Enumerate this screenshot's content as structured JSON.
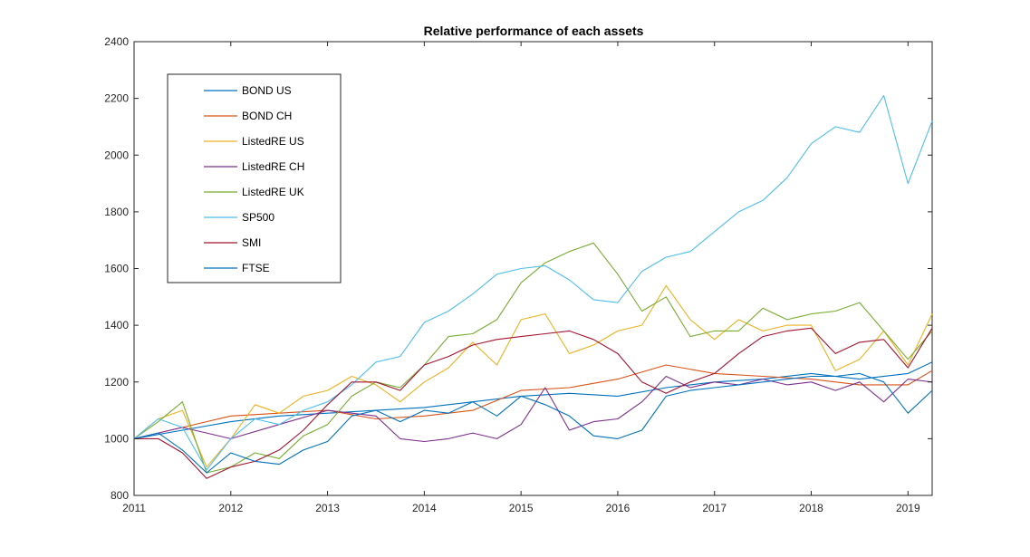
{
  "chart_data": {
    "type": "line",
    "title": "Relative performance of each assets",
    "xlabel": "",
    "ylabel": "",
    "xlim": [
      2011,
      2019.25
    ],
    "ylim": [
      800,
      2400
    ],
    "x_ticks": [
      2011,
      2012,
      2013,
      2014,
      2015,
      2016,
      2017,
      2018,
      2019
    ],
    "y_ticks": [
      800,
      1000,
      1200,
      1400,
      1600,
      1800,
      2000,
      2200,
      2400
    ],
    "legend_position": "top-left",
    "grid": false,
    "series": [
      {
        "name": "BOND US",
        "color": "#0072BD",
        "x": [
          2011,
          2011.5,
          2012,
          2012.5,
          2013,
          2013.5,
          2014,
          2014.5,
          2015,
          2015.5,
          2016,
          2016.5,
          2017,
          2017.5,
          2018,
          2018.5,
          2019,
          2019.25
        ],
        "y": [
          1000,
          1030,
          1060,
          1080,
          1090,
          1100,
          1110,
          1130,
          1150,
          1160,
          1150,
          1180,
          1200,
          1210,
          1230,
          1210,
          1230,
          1270
        ]
      },
      {
        "name": "BOND CH",
        "color": "#D95319",
        "x": [
          2011,
          2011.5,
          2012,
          2012.5,
          2013,
          2013.5,
          2014,
          2014.5,
          2015,
          2015.5,
          2016,
          2016.5,
          2017,
          2017.5,
          2018,
          2018.5,
          2019,
          2019.25
        ],
        "y": [
          1000,
          1040,
          1080,
          1090,
          1100,
          1070,
          1080,
          1100,
          1170,
          1180,
          1210,
          1260,
          1230,
          1220,
          1210,
          1190,
          1190,
          1240
        ]
      },
      {
        "name": "ListedRE US",
        "color": "#EDB120",
        "x": [
          2011,
          2011.25,
          2011.5,
          2011.75,
          2012,
          2012.25,
          2012.5,
          2012.75,
          2013,
          2013.25,
          2013.5,
          2013.75,
          2014,
          2014.25,
          2014.5,
          2014.75,
          2015,
          2015.25,
          2015.5,
          2015.75,
          2016,
          2016.25,
          2016.5,
          2016.75,
          2017,
          2017.25,
          2017.5,
          2017.75,
          2018,
          2018.25,
          2018.5,
          2018.75,
          2019,
          2019.25
        ],
        "y": [
          1000,
          1070,
          1100,
          900,
          1000,
          1120,
          1090,
          1150,
          1170,
          1220,
          1190,
          1130,
          1200,
          1250,
          1340,
          1260,
          1420,
          1440,
          1300,
          1330,
          1380,
          1400,
          1540,
          1420,
          1350,
          1420,
          1380,
          1400,
          1400,
          1240,
          1280,
          1380,
          1260,
          1440
        ]
      },
      {
        "name": "ListedRE CH",
        "color": "#7E2F8E",
        "x": [
          2011,
          2011.5,
          2012,
          2012.5,
          2013,
          2013.25,
          2013.5,
          2013.75,
          2014,
          2014.25,
          2014.5,
          2014.75,
          2015,
          2015.25,
          2015.5,
          2015.75,
          2016,
          2016.25,
          2016.5,
          2016.75,
          2017,
          2017.25,
          2017.5,
          2017.75,
          2018,
          2018.25,
          2018.5,
          2018.75,
          2019,
          2019.25
        ],
        "y": [
          1000,
          1040,
          1000,
          1050,
          1100,
          1090,
          1080,
          1000,
          990,
          1000,
          1020,
          1000,
          1050,
          1180,
          1030,
          1060,
          1070,
          1130,
          1220,
          1180,
          1200,
          1190,
          1210,
          1190,
          1200,
          1170,
          1200,
          1130,
          1210,
          1200
        ]
      },
      {
        "name": "ListedRE UK",
        "color": "#77AC30",
        "x": [
          2011,
          2011.25,
          2011.5,
          2011.75,
          2012,
          2012.25,
          2012.5,
          2012.75,
          2013,
          2013.25,
          2013.5,
          2013.75,
          2014,
          2014.25,
          2014.5,
          2014.75,
          2015,
          2015.25,
          2015.5,
          2015.75,
          2016,
          2016.25,
          2016.5,
          2016.75,
          2017,
          2017.25,
          2017.5,
          2017.75,
          2018,
          2018.25,
          2018.5,
          2018.75,
          2019,
          2019.25
        ],
        "y": [
          1000,
          1060,
          1130,
          880,
          900,
          950,
          930,
          1010,
          1050,
          1150,
          1200,
          1180,
          1260,
          1360,
          1370,
          1420,
          1550,
          1620,
          1660,
          1690,
          1580,
          1450,
          1500,
          1360,
          1380,
          1380,
          1460,
          1420,
          1440,
          1450,
          1480,
          1380,
          1280,
          1380
        ]
      },
      {
        "name": "SP500",
        "color": "#4DBEEE",
        "x": [
          2011,
          2011.25,
          2011.5,
          2011.75,
          2012,
          2012.25,
          2012.5,
          2012.75,
          2013,
          2013.25,
          2013.5,
          2013.75,
          2014,
          2014.25,
          2014.5,
          2014.75,
          2015,
          2015.25,
          2015.5,
          2015.75,
          2016,
          2016.25,
          2016.5,
          2016.75,
          2017,
          2017.25,
          2017.5,
          2017.75,
          2018,
          2018.25,
          2018.5,
          2018.75,
          2019,
          2019.25
        ],
        "y": [
          1000,
          1070,
          1040,
          890,
          1000,
          1070,
          1050,
          1100,
          1130,
          1190,
          1270,
          1290,
          1410,
          1450,
          1510,
          1580,
          1600,
          1610,
          1560,
          1490,
          1480,
          1590,
          1640,
          1660,
          1730,
          1800,
          1840,
          1920,
          2040,
          2100,
          2080,
          2210,
          1900,
          2120
        ]
      },
      {
        "name": "SMI",
        "color": "#A2142F",
        "x": [
          2011,
          2011.25,
          2011.5,
          2011.75,
          2012,
          2012.25,
          2012.5,
          2012.75,
          2013,
          2013.25,
          2013.5,
          2013.75,
          2014,
          2014.25,
          2014.5,
          2014.75,
          2015,
          2015.25,
          2015.5,
          2015.75,
          2016,
          2016.25,
          2016.5,
          2016.75,
          2017,
          2017.25,
          2017.5,
          2017.75,
          2018,
          2018.25,
          2018.5,
          2018.75,
          2019,
          2019.25
        ],
        "y": [
          1000,
          1000,
          950,
          860,
          900,
          920,
          960,
          1030,
          1120,
          1200,
          1200,
          1170,
          1260,
          1290,
          1330,
          1350,
          1360,
          1370,
          1380,
          1350,
          1300,
          1200,
          1160,
          1200,
          1230,
          1300,
          1360,
          1380,
          1390,
          1300,
          1340,
          1350,
          1250,
          1390
        ]
      },
      {
        "name": "FTSE",
        "color": "#0072BD",
        "x": [
          2011,
          2011.25,
          2011.5,
          2011.75,
          2012,
          2012.25,
          2012.5,
          2012.75,
          2013,
          2013.25,
          2013.5,
          2013.75,
          2014,
          2014.25,
          2014.5,
          2014.75,
          2015,
          2015.25,
          2015.5,
          2015.75,
          2016,
          2016.25,
          2016.5,
          2016.75,
          2017,
          2017.25,
          2017.5,
          2017.75,
          2018,
          2018.25,
          2018.5,
          2018.75,
          2019,
          2019.25
        ],
        "y": [
          1000,
          1020,
          960,
          880,
          950,
          920,
          910,
          960,
          990,
          1080,
          1100,
          1060,
          1100,
          1090,
          1130,
          1080,
          1150,
          1120,
          1080,
          1010,
          1000,
          1030,
          1150,
          1170,
          1180,
          1190,
          1200,
          1210,
          1220,
          1220,
          1230,
          1200,
          1090,
          1170
        ]
      }
    ]
  }
}
